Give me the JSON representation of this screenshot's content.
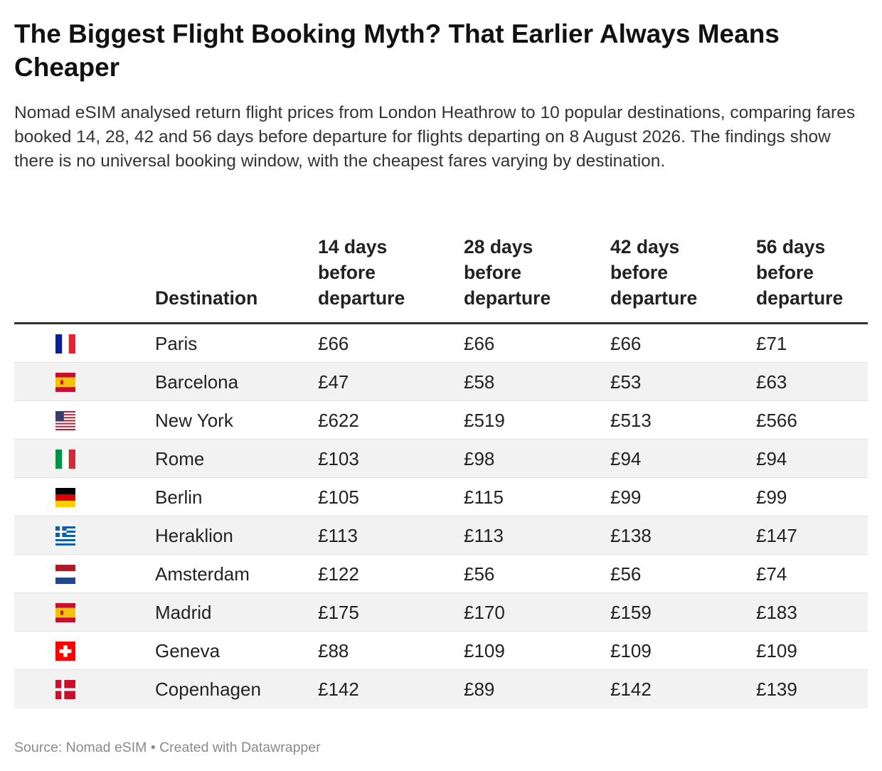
{
  "header": {
    "title": "The Biggest Flight Booking Myth? That Earlier Always Means Cheaper",
    "subtitle": "Nomad eSIM analysed return flight prices from London Heathrow to 10 popular destinations, comparing fares booked 14, 28, 42 and 56 days before departure for flights departing on 8 August 2026. The findings show there is no universal booking window, with the cheapest fares varying by destination."
  },
  "footer": {
    "text": "Source: Nomad eSIM • Created with Datawrapper"
  },
  "chart_data": {
    "type": "table",
    "columns": [
      "Destination",
      "14 days before departure",
      "28 days before departure",
      "42 days before departure",
      "56 days before departure"
    ],
    "rows": [
      {
        "flag": "france-flag-icon",
        "destination": "Paris",
        "values": [
          "£66",
          "£66",
          "£66",
          "£71"
        ]
      },
      {
        "flag": "spain-flag-icon",
        "destination": "Barcelona",
        "values": [
          "£47",
          "£58",
          "£53",
          "£63"
        ]
      },
      {
        "flag": "usa-flag-icon",
        "destination": "New York",
        "values": [
          "£622",
          "£519",
          "£513",
          "£566"
        ]
      },
      {
        "flag": "italy-flag-icon",
        "destination": "Rome",
        "values": [
          "£103",
          "£98",
          "£94",
          "£94"
        ]
      },
      {
        "flag": "germany-flag-icon",
        "destination": "Berlin",
        "values": [
          "£105",
          "£115",
          "£99",
          "£99"
        ]
      },
      {
        "flag": "greece-flag-icon",
        "destination": "Heraklion",
        "values": [
          "£113",
          "£113",
          "£138",
          "£147"
        ]
      },
      {
        "flag": "netherlands-flag-icon",
        "destination": "Amsterdam",
        "values": [
          "£122",
          "£56",
          "£56",
          "£74"
        ]
      },
      {
        "flag": "spain-flag-icon",
        "destination": "Madrid",
        "values": [
          "£175",
          "£170",
          "£159",
          "£183"
        ]
      },
      {
        "flag": "switzerland-flag-icon",
        "destination": "Geneva",
        "values": [
          "£88",
          "£109",
          "£109",
          "£109"
        ]
      },
      {
        "flag": "denmark-flag-icon",
        "destination": "Copenhagen",
        "values": [
          "£142",
          "£89",
          "£142",
          "£139"
        ]
      }
    ]
  },
  "colors": {
    "france": [
      "#0f1f8f",
      "#ffffff",
      "#e8232b"
    ],
    "spain": [
      "#c8102e",
      "#f4c400"
    ],
    "usa": [
      "#b22234",
      "#ffffff",
      "#3c3b6e"
    ],
    "italy": [
      "#009246",
      "#ffffff",
      "#ce2b37"
    ],
    "germany": [
      "#000000",
      "#dd0000",
      "#ffce00"
    ],
    "greece": [
      "#0d5eaf",
      "#ffffff"
    ],
    "netherlands": [
      "#ae1c28",
      "#ffffff",
      "#21468b"
    ],
    "switzerland": [
      "#ff0000",
      "#ffffff"
    ],
    "denmark": [
      "#c8102e",
      "#ffffff"
    ]
  }
}
